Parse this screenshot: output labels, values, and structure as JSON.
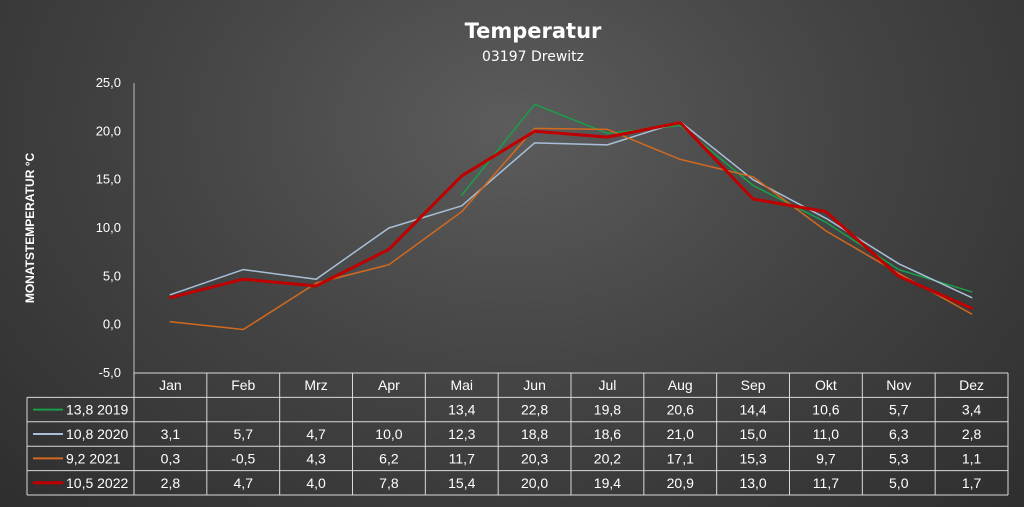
{
  "chart_data": {
    "type": "line",
    "title": "Temperatur",
    "subtitle": "03197 Drewitz",
    "ylabel": "MONATSTEMPERATUR °C",
    "xlabel": "",
    "ylim": [
      -5,
      25
    ],
    "ytick_labels": [
      "25,0",
      "20,0",
      "15,0",
      "10,0",
      "5,0",
      "0,0",
      "-5,0"
    ],
    "categories": [
      "Jan",
      "Feb",
      "Mrz",
      "Apr",
      "Mai",
      "Jun",
      "Jul",
      "Aug",
      "Sep",
      "Okt",
      "Nov",
      "Dez"
    ],
    "grid": false,
    "legend": "table-below",
    "series": [
      {
        "name": "13,8 2019",
        "color": "#1a9e49",
        "width": 1.5,
        "values": [
          null,
          null,
          null,
          null,
          13.4,
          22.8,
          19.8,
          20.6,
          14.4,
          10.6,
          5.7,
          3.4
        ],
        "labels": [
          "",
          "",
          "",
          "",
          "13,4",
          "22,8",
          "19,8",
          "20,6",
          "14,4",
          "10,6",
          "5,7",
          "3,4"
        ]
      },
      {
        "name": "10,8 2020",
        "color": "#a9bfd8",
        "width": 1.5,
        "values": [
          3.1,
          5.7,
          4.7,
          10.0,
          12.3,
          18.8,
          18.6,
          21.0,
          15.0,
          11.0,
          6.3,
          2.8
        ],
        "labels": [
          "3,1",
          "5,7",
          "4,7",
          "10,0",
          "12,3",
          "18,8",
          "18,6",
          "21,0",
          "15,0",
          "11,0",
          "6,3",
          "2,8"
        ]
      },
      {
        "name": "9,2 2021",
        "color": "#d2691e",
        "width": 1.5,
        "values": [
          0.3,
          -0.5,
          4.3,
          6.2,
          11.7,
          20.3,
          20.2,
          17.1,
          15.3,
          9.7,
          5.3,
          1.1
        ],
        "labels": [
          "0,3",
          "-0,5",
          "4,3",
          "6,2",
          "11,7",
          "20,3",
          "20,2",
          "17,1",
          "15,3",
          "9,7",
          "5,3",
          "1,1"
        ]
      },
      {
        "name": "10,5 2022",
        "color": "#c00000",
        "width": 3,
        "values": [
          2.8,
          4.7,
          4.0,
          7.8,
          15.4,
          20.0,
          19.4,
          20.9,
          13.0,
          11.7,
          5.0,
          1.7
        ],
        "labels": [
          "2,8",
          "4,7",
          "4,0",
          "7,8",
          "15,4",
          "20,0",
          "19,4",
          "20,9",
          "13,0",
          "11,7",
          "5,0",
          "1,7"
        ]
      }
    ]
  }
}
